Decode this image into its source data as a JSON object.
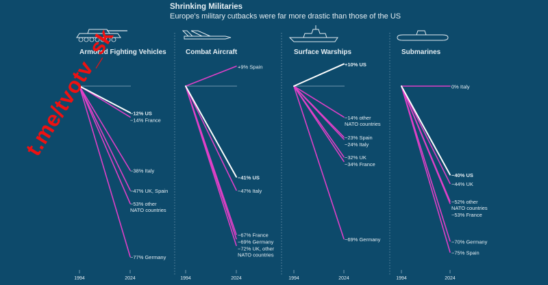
{
  "title": "Shrinking Militaries",
  "subtitle": "Europe's military cutbacks were far more drastic than those of the US",
  "watermark": "t.me/tvotv_sk",
  "colors": {
    "background": "#0d4a6b",
    "us": "#ffffff",
    "europe": "#e040c8",
    "baseline": "#8fb0c4",
    "divider": "#5f8ba3",
    "text": "#e6eef3"
  },
  "chart_data": [
    {
      "type": "line",
      "title": "Armored Fighting Vehicles",
      "icon": "tank-icon",
      "x": [
        "1994",
        "2024"
      ],
      "series": [
        {
          "name": "US",
          "values": [
            0,
            -12
          ],
          "label": "−12% US",
          "highlight": true
        },
        {
          "name": "France",
          "values": [
            0,
            -14
          ],
          "label": "−14% France"
        },
        {
          "name": "Italy",
          "values": [
            0,
            -38
          ],
          "label": "−38% Italy"
        },
        {
          "name": "UK, Spain",
          "values": [
            0,
            -47
          ],
          "label": "−47% UK, Spain"
        },
        {
          "name": "other NATO countries",
          "values": [
            0,
            -53
          ],
          "label": "−53% other|NATO countries"
        },
        {
          "name": "Germany",
          "values": [
            0,
            -77
          ],
          "label": "−77% Germany"
        }
      ]
    },
    {
      "type": "line",
      "title": "Combat Aircraft",
      "icon": "jet-icon",
      "x": [
        "1994",
        "2024"
      ],
      "series": [
        {
          "name": "Spain",
          "values": [
            0,
            9
          ],
          "label": "+9% Spain"
        },
        {
          "name": "US",
          "values": [
            0,
            -41
          ],
          "label": "−41% US",
          "highlight": true
        },
        {
          "name": "Italy",
          "values": [
            0,
            -47
          ],
          "label": "−47% Italy"
        },
        {
          "name": "France",
          "values": [
            0,
            -67
          ],
          "label": "−67% France"
        },
        {
          "name": "Germany",
          "values": [
            0,
            -69
          ],
          "label": "−69% Germany"
        },
        {
          "name": "UK, other NATO countries",
          "values": [
            0,
            -72
          ],
          "label": "−72% UK, other|NATO countries"
        }
      ]
    },
    {
      "type": "line",
      "title": "Surface Warships",
      "icon": "warship-icon",
      "x": [
        "1994",
        "2024"
      ],
      "series": [
        {
          "name": "US",
          "values": [
            0,
            10
          ],
          "label": "+10% US",
          "highlight": true
        },
        {
          "name": "other NATO countries",
          "values": [
            0,
            -14
          ],
          "label": "−14% other|NATO countries"
        },
        {
          "name": "Spain",
          "values": [
            0,
            -23
          ],
          "label": "−23% Spain"
        },
        {
          "name": "Italy",
          "values": [
            0,
            -24
          ],
          "label": "−24% Italy"
        },
        {
          "name": "UK",
          "values": [
            0,
            -32
          ],
          "label": "−32% UK"
        },
        {
          "name": "France",
          "values": [
            0,
            -34
          ],
          "label": "−34% France"
        },
        {
          "name": "Germany",
          "values": [
            0,
            -69
          ],
          "label": "−69% Germany"
        }
      ]
    },
    {
      "type": "line",
      "title": "Submarines",
      "icon": "submarine-icon",
      "x": [
        "1994",
        "2024"
      ],
      "series": [
        {
          "name": "Italy",
          "values": [
            0,
            0
          ],
          "label": "0% Italy"
        },
        {
          "name": "US",
          "values": [
            0,
            -40
          ],
          "label": "−40% US",
          "highlight": true
        },
        {
          "name": "UK",
          "values": [
            0,
            -44
          ],
          "label": "−44% UK"
        },
        {
          "name": "other NATO countries",
          "values": [
            0,
            -52
          ],
          "label": "−52% other|NATO countries"
        },
        {
          "name": "France",
          "values": [
            0,
            -53
          ],
          "label": "−53% France"
        },
        {
          "name": "Germany",
          "values": [
            0,
            -70
          ],
          "label": "−70% Germany"
        },
        {
          "name": "Spain",
          "values": [
            0,
            -75
          ],
          "label": "−75% Spain"
        }
      ]
    }
  ]
}
